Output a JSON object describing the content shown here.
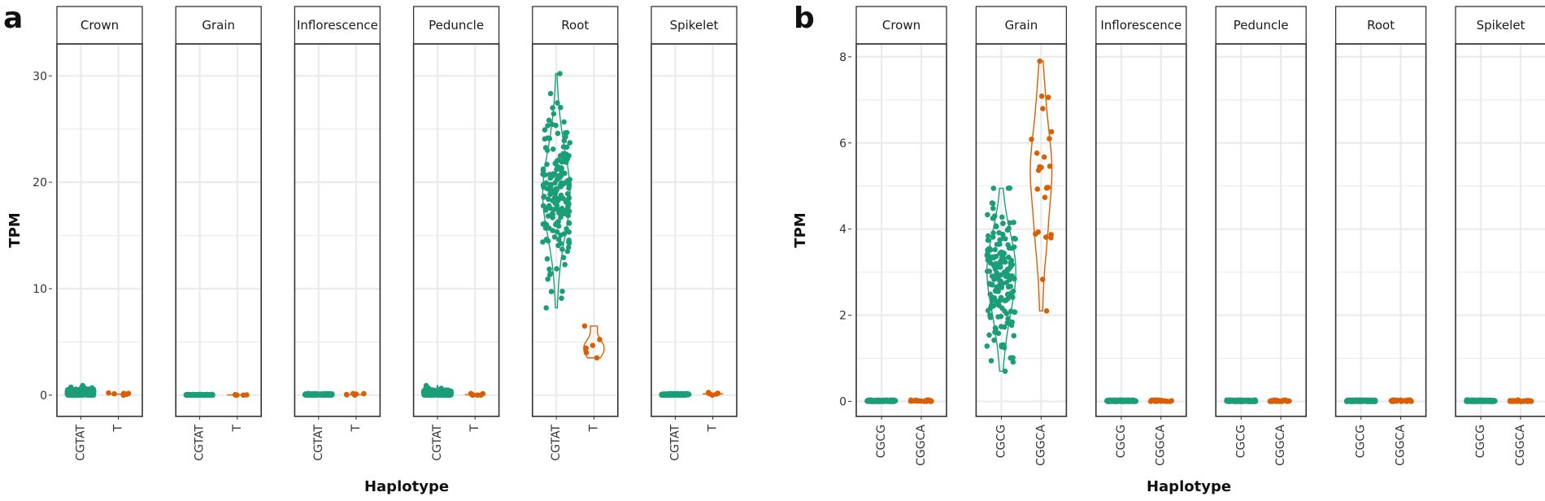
{
  "colors": {
    "green": "#1b9e77",
    "orange": "#d95f02",
    "grid": "#ebebeb",
    "frame": "#333333",
    "strip_fill": "#ffffff"
  },
  "chart_data": [
    {
      "panel_label": "a",
      "type": "violin+jitter",
      "ylabel": "TPM",
      "xlabel": "Haplotype",
      "ylim": [
        -2,
        33
      ],
      "yticks": [
        0,
        10,
        20,
        30
      ],
      "categories": [
        "CGTAT",
        "T"
      ],
      "facets": [
        {
          "name": "Crown",
          "groups": [
            {
              "haplotype": "CGTAT",
              "n": 180,
              "mean": 0.25,
              "sd": 0.2,
              "min": 0,
              "max": 0.9
            },
            {
              "haplotype": "T",
              "n": 6,
              "mean": 0.1,
              "sd": 0.05,
              "min": 0,
              "max": 0.2
            }
          ]
        },
        {
          "name": "Grain",
          "groups": [
            {
              "haplotype": "CGTAT",
              "n": 180,
              "mean": 0.02,
              "sd": 0.02,
              "min": 0,
              "max": 0.06
            },
            {
              "haplotype": "T",
              "n": 6,
              "mean": 0.02,
              "sd": 0.02,
              "min": 0,
              "max": 0.05
            }
          ]
        },
        {
          "name": "Inflorescence",
          "groups": [
            {
              "haplotype": "CGTAT",
              "n": 180,
              "mean": 0.05,
              "sd": 0.04,
              "min": 0,
              "max": 0.15
            },
            {
              "haplotype": "T",
              "n": 6,
              "mean": 0.05,
              "sd": 0.04,
              "min": 0,
              "max": 0.15
            }
          ]
        },
        {
          "name": "Peduncle",
          "groups": [
            {
              "haplotype": "CGTAT",
              "n": 180,
              "mean": 0.2,
              "sd": 0.18,
              "min": 0,
              "max": 0.9
            },
            {
              "haplotype": "T",
              "n": 6,
              "mean": 0.05,
              "sd": 0.05,
              "min": 0,
              "max": 0.15
            }
          ]
        },
        {
          "name": "Root",
          "groups": [
            {
              "haplotype": "CGTAT",
              "n": 180,
              "mean": 18.5,
              "sd": 4.2,
              "min": 8.2,
              "max": 30.2
            },
            {
              "haplotype": "T",
              "n": 6,
              "mean": 5.0,
              "sd": 0.9,
              "min": 3.5,
              "max": 6.5
            }
          ]
        },
        {
          "name": "Spikelet",
          "groups": [
            {
              "haplotype": "CGTAT",
              "n": 180,
              "mean": 0.05,
              "sd": 0.04,
              "min": 0,
              "max": 0.15
            },
            {
              "haplotype": "T",
              "n": 6,
              "mean": 0.12,
              "sd": 0.06,
              "min": 0,
              "max": 0.25
            }
          ]
        }
      ]
    },
    {
      "panel_label": "b",
      "type": "violin+jitter",
      "ylabel": "TPM",
      "xlabel": "Haplotype",
      "ylim": [
        -0.35,
        8.3
      ],
      "yticks": [
        0,
        2,
        4,
        6,
        8
      ],
      "categories": [
        "CGCG",
        "CGGCA"
      ],
      "facets": [
        {
          "name": "Crown",
          "groups": [
            {
              "haplotype": "CGCG",
              "n": 170,
              "mean": 0.01,
              "sd": 0.01,
              "min": 0,
              "max": 0.03
            },
            {
              "haplotype": "CGGCA",
              "n": 25,
              "mean": 0.01,
              "sd": 0.01,
              "min": 0,
              "max": 0.03
            }
          ]
        },
        {
          "name": "Grain",
          "groups": [
            {
              "haplotype": "CGCG",
              "n": 170,
              "mean": 2.8,
              "sd": 0.9,
              "min": 0.7,
              "max": 4.95
            },
            {
              "haplotype": "CGGCA",
              "n": 25,
              "mean": 5.2,
              "sd": 1.1,
              "min": 2.1,
              "max": 7.9
            }
          ]
        },
        {
          "name": "Inflorescence",
          "groups": [
            {
              "haplotype": "CGCG",
              "n": 170,
              "mean": 0.01,
              "sd": 0.01,
              "min": 0,
              "max": 0.03
            },
            {
              "haplotype": "CGGCA",
              "n": 25,
              "mean": 0.01,
              "sd": 0.01,
              "min": 0,
              "max": 0.03
            }
          ]
        },
        {
          "name": "Peduncle",
          "groups": [
            {
              "haplotype": "CGCG",
              "n": 170,
              "mean": 0.01,
              "sd": 0.01,
              "min": 0,
              "max": 0.03
            },
            {
              "haplotype": "CGGCA",
              "n": 25,
              "mean": 0.01,
              "sd": 0.01,
              "min": 0,
              "max": 0.03
            }
          ]
        },
        {
          "name": "Root",
          "groups": [
            {
              "haplotype": "CGCG",
              "n": 170,
              "mean": 0.01,
              "sd": 0.01,
              "min": 0,
              "max": 0.03
            },
            {
              "haplotype": "CGGCA",
              "n": 25,
              "mean": 0.01,
              "sd": 0.01,
              "min": 0,
              "max": 0.03
            }
          ]
        },
        {
          "name": "Spikelet",
          "groups": [
            {
              "haplotype": "CGCG",
              "n": 170,
              "mean": 0.01,
              "sd": 0.01,
              "min": 0,
              "max": 0.03
            },
            {
              "haplotype": "CGGCA",
              "n": 25,
              "mean": 0.01,
              "sd": 0.01,
              "min": 0,
              "max": 0.03
            }
          ]
        }
      ]
    }
  ]
}
